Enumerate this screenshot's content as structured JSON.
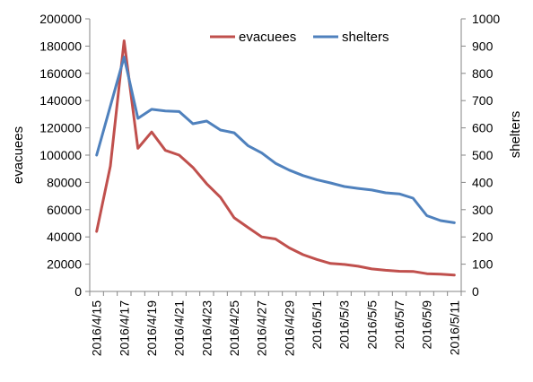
{
  "chart_data": {
    "type": "line",
    "x": [
      "2016/4/15",
      "2016/4/16",
      "2016/4/17",
      "2016/4/18",
      "2016/4/19",
      "2016/4/20",
      "2016/4/21",
      "2016/4/22",
      "2016/4/23",
      "2016/4/24",
      "2016/4/25",
      "2016/4/26",
      "2016/4/27",
      "2016/4/28",
      "2016/4/29",
      "2016/4/30",
      "2016/5/1",
      "2016/5/2",
      "2016/5/3",
      "2016/5/4",
      "2016/5/5",
      "2016/5/6",
      "2016/5/7",
      "2016/5/8",
      "2016/5/9",
      "2016/5/10",
      "2016/5/11"
    ],
    "xtick_labels": [
      "2016/4/15",
      "2016/4/17",
      "2016/4/19",
      "2016/4/21",
      "2016/4/23",
      "2016/4/25",
      "2016/4/27",
      "2016/4/29",
      "2016/5/1",
      "2016/5/3",
      "2016/5/5",
      "2016/5/7",
      "2016/5/9",
      "2016/5/11"
    ],
    "series": [
      {
        "name": "evacuees",
        "axis": "left",
        "color": "#c0504d",
        "values": [
          44000,
          92000,
          183900,
          105000,
          117000,
          103500,
          100000,
          91000,
          79000,
          69000,
          54000,
          47000,
          40000,
          38500,
          32000,
          27000,
          23500,
          20500,
          19800,
          18500,
          16500,
          15500,
          14800,
          14700,
          13000,
          12700,
          12000
        ]
      },
      {
        "name": "shelters",
        "axis": "right",
        "color": "#4f81bd",
        "values": [
          500,
          680,
          860,
          635,
          668,
          662,
          660,
          615,
          625,
          592,
          582,
          535,
          508,
          470,
          445,
          425,
          410,
          398,
          385,
          378,
          372,
          362,
          358,
          342,
          278,
          260,
          252
        ]
      }
    ],
    "ylabel": "evacuees",
    "y2label": "shelters",
    "ylim": [
      0,
      200000
    ],
    "y2lim": [
      0,
      1000
    ],
    "yticks": [
      "0",
      "20000",
      "40000",
      "60000",
      "80000",
      "100000",
      "120000",
      "140000",
      "160000",
      "180000",
      "200000"
    ],
    "y2ticks": [
      "0",
      "100",
      "200",
      "300",
      "400",
      "500",
      "600",
      "700",
      "800",
      "900",
      "1000"
    ],
    "legend": {
      "position": "top-right",
      "items": [
        "evacuees",
        "shelters"
      ]
    },
    "grid": false
  }
}
